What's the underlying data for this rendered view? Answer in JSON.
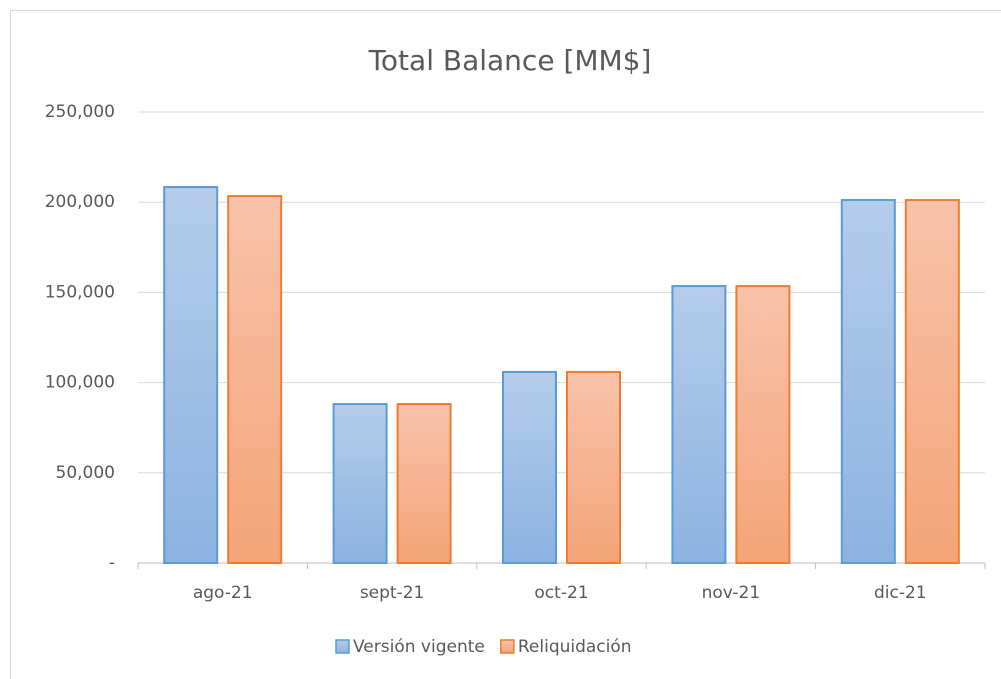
{
  "chart_data": {
    "type": "bar",
    "title": "Total Balance [MM$]",
    "categories": [
      "ago-21",
      "sept-21",
      "oct-21",
      "nov-21",
      "dic-21"
    ],
    "series": [
      {
        "name": "Versión vigente",
        "color": "#5b9bd5",
        "values": [
          208400,
          88100,
          105900,
          153500,
          201200
        ]
      },
      {
        "name": "Reliquidación",
        "color": "#ed7d31",
        "values": [
          203400,
          88100,
          105900,
          153500,
          201200
        ]
      }
    ],
    "ylim": [
      0,
      250000
    ],
    "yticks": [
      {
        "value": 0,
        "label": "-"
      },
      {
        "value": 50000,
        "label": "50,000"
      },
      {
        "value": 100000,
        "label": "100,000"
      },
      {
        "value": 150000,
        "label": "150,000"
      },
      {
        "value": 200000,
        "label": "200,000"
      },
      {
        "value": 250000,
        "label": "250,000"
      }
    ],
    "grid": true,
    "legend": "bottom"
  }
}
